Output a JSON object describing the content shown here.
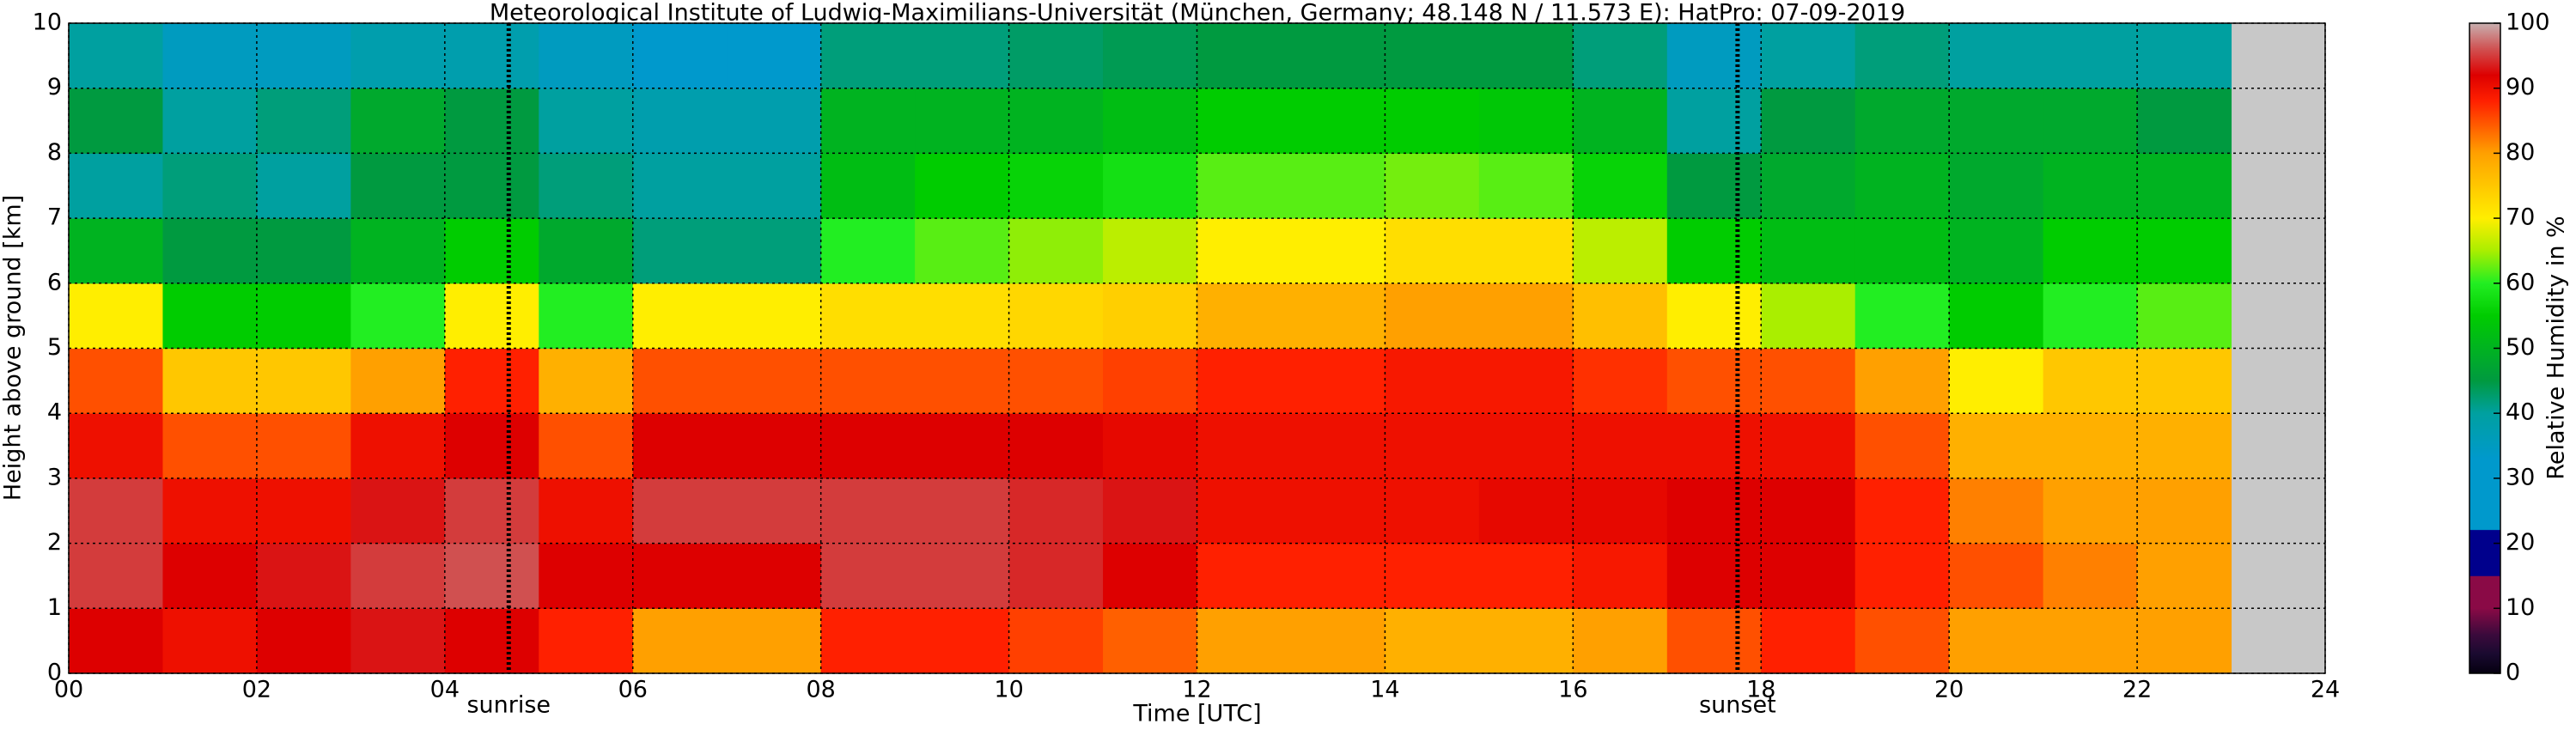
{
  "chart_data": {
    "type": "heatmap",
    "title": "Meteorological Institute of Ludwig-Maximilians-Universität (München, Germany; 48.148 N / 11.573 E):    HatPro: 07-09-2019",
    "x_label": "Time [UTC]",
    "y_label": "Height above ground [km]",
    "xlim": [
      0,
      24
    ],
    "ylim": [
      0,
      10
    ],
    "xticks": [
      {
        "value": 0,
        "label": "00"
      },
      {
        "value": 2,
        "label": "02"
      },
      {
        "value": 4,
        "label": "04"
      },
      {
        "value": 6,
        "label": "06"
      },
      {
        "value": 8,
        "label": "08"
      },
      {
        "value": 10,
        "label": "10"
      },
      {
        "value": 12,
        "label": "12"
      },
      {
        "value": 14,
        "label": "14"
      },
      {
        "value": 16,
        "label": "16"
      },
      {
        "value": 18,
        "label": "18"
      },
      {
        "value": 20,
        "label": "20"
      },
      {
        "value": 22,
        "label": "22"
      },
      {
        "value": 24,
        "label": "24"
      }
    ],
    "yticks": [
      0,
      1,
      2,
      3,
      4,
      5,
      6,
      7,
      8,
      9,
      10
    ],
    "grid": true,
    "no_data_color": "#c8c8c8",
    "x_bins": [
      0,
      1,
      2,
      3,
      4,
      5,
      6,
      7,
      8,
      9,
      10,
      11,
      12,
      13,
      14,
      15,
      16,
      17,
      18,
      19,
      20,
      21,
      22,
      23
    ],
    "y_bins": [
      0,
      1,
      2,
      3,
      4,
      5,
      6,
      7,
      8,
      9,
      10
    ],
    "values": [
      [
        92,
        95,
        95,
        90,
        85,
        70,
        50,
        40,
        45,
        40
      ],
      [
        90,
        92,
        90,
        85,
        75,
        55,
        45,
        42,
        40,
        35
      ],
      [
        92,
        93,
        90,
        85,
        75,
        55,
        45,
        40,
        42,
        35
      ],
      [
        93,
        95,
        93,
        90,
        80,
        60,
        50,
        45,
        48,
        38
      ],
      [
        92,
        96,
        95,
        92,
        88,
        70,
        55,
        45,
        45,
        38
      ],
      [
        88,
        92,
        90,
        85,
        78,
        60,
        48,
        42,
        40,
        35
      ],
      [
        80,
        92,
        95,
        92,
        85,
        70,
        42,
        40,
        38,
        32
      ],
      [
        80,
        92,
        95,
        92,
        85,
        70,
        42,
        40,
        38,
        32
      ],
      [
        88,
        95,
        95,
        92,
        85,
        72,
        60,
        52,
        50,
        42
      ],
      [
        88,
        95,
        95,
        92,
        85,
        72,
        62,
        55,
        50,
        42
      ],
      [
        86,
        94,
        94,
        92,
        85,
        73,
        64,
        56,
        50,
        43
      ],
      [
        84,
        92,
        93,
        91,
        86,
        74,
        66,
        58,
        52,
        44
      ],
      [
        80,
        88,
        90,
        90,
        88,
        78,
        70,
        62,
        55,
        45
      ],
      [
        80,
        88,
        90,
        90,
        88,
        78,
        70,
        62,
        55,
        45
      ],
      [
        78,
        88,
        90,
        90,
        89,
        80,
        72,
        63,
        55,
        45
      ],
      [
        78,
        88,
        91,
        90,
        89,
        80,
        72,
        62,
        54,
        45
      ],
      [
        80,
        89,
        91,
        90,
        87,
        76,
        66,
        56,
        50,
        42
      ],
      [
        85,
        92,
        92,
        90,
        85,
        70,
        55,
        45,
        40,
        35
      ],
      [
        88,
        92,
        92,
        90,
        85,
        65,
        52,
        48,
        45,
        40
      ],
      [
        85,
        88,
        88,
        85,
        80,
        60,
        52,
        50,
        48,
        42
      ],
      [
        80,
        85,
        82,
        78,
        70,
        55,
        50,
        48,
        48,
        40
      ],
      [
        80,
        82,
        80,
        78,
        75,
        60,
        55,
        50,
        48,
        40
      ],
      [
        80,
        80,
        80,
        78,
        75,
        62,
        55,
        50,
        45,
        40
      ]
    ],
    "annotations": [
      {
        "text": "sunrise",
        "x": 4.68
      },
      {
        "text": "sunset",
        "x": 17.75
      }
    ],
    "colorbar": {
      "label": "Relative Humidity in %",
      "lim": [
        0,
        100
      ],
      "ticks": [
        0,
        10,
        20,
        30,
        40,
        50,
        60,
        70,
        80,
        90,
        100
      ],
      "colors": [
        [
          0,
          "#050010"
        ],
        [
          3,
          "#1a0a30"
        ],
        [
          6,
          "#3c0a3c"
        ],
        [
          10,
          "#8a0a46"
        ],
        [
          14.9,
          "#8a0a46"
        ],
        [
          15,
          "#00008c"
        ],
        [
          22,
          "#00008c"
        ],
        [
          22.1,
          "#0099cc"
        ],
        [
          33,
          "#0099cc"
        ],
        [
          40,
          "#00a0a0"
        ],
        [
          45,
          "#009a40"
        ],
        [
          55,
          "#00cc00"
        ],
        [
          60,
          "#22ee22"
        ],
        [
          65,
          "#aaee00"
        ],
        [
          70,
          "#ffee00"
        ],
        [
          80,
          "#ffa000"
        ],
        [
          88,
          "#ff2000"
        ],
        [
          92,
          "#dd0000"
        ],
        [
          96,
          "#d05050"
        ],
        [
          100,
          "#c8b0b0"
        ]
      ]
    }
  }
}
